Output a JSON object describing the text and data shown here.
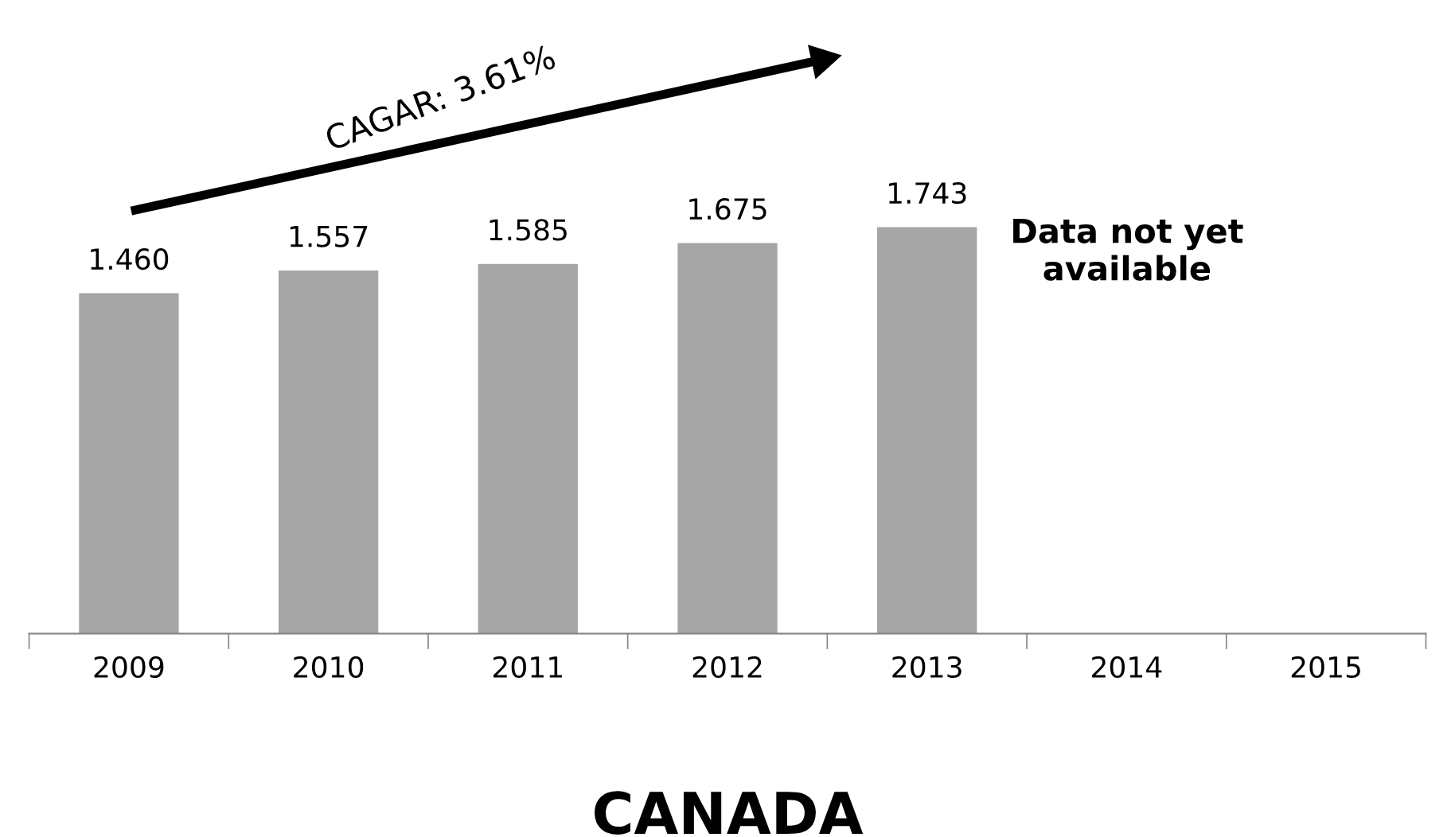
{
  "chart_data": {
    "type": "bar",
    "title": "CANADA",
    "categories": [
      "2009",
      "2010",
      "2011",
      "2012",
      "2013",
      "2014",
      "2015"
    ],
    "values": [
      1.46,
      1.557,
      1.585,
      1.675,
      1.743,
      null,
      null
    ],
    "value_labels": [
      "1.460",
      "1.557",
      "1.585",
      "1.675",
      "1.743",
      null,
      null
    ],
    "color": "#a6a6a6",
    "tick_labels": "x",
    "grid": false,
    "legend": false,
    "annotations": [
      "CAGAR: 3.61%",
      "Data not yet available"
    ]
  }
}
